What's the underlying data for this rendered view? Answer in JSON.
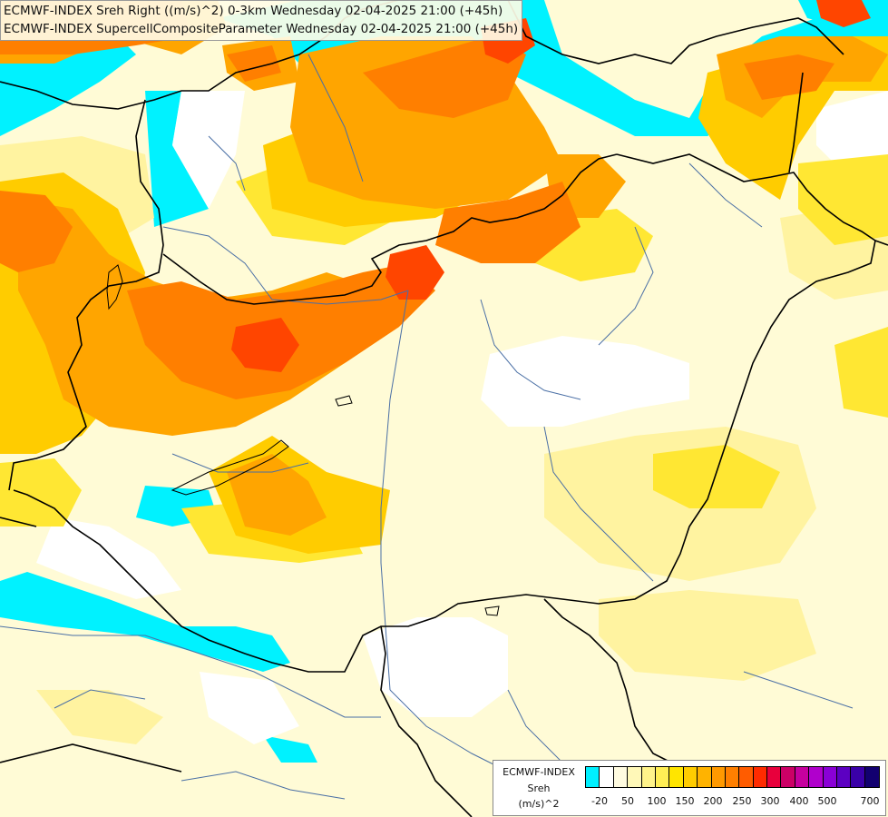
{
  "title": {
    "line1": "ECMWF-INDEX Sreh Right ((m/s)^2) 0-3km Wednesday 02-04-2025 21:00 (+45h)",
    "line2": "ECMWF-INDEX SupercellCompositeParameter Wednesday 02-04-2025 21:00 (+45h)"
  },
  "legend": {
    "model": "ECMWF-INDEX",
    "param": "Sreh",
    "unit": "(m/s)^2",
    "colors": [
      "#00f0ff",
      "#ffffff",
      "#fffbe0",
      "#fff8b8",
      "#fff38a",
      "#ffee55",
      "#ffe500",
      "#ffcc00",
      "#ffb300",
      "#ff9900",
      "#ff7f00",
      "#ff5c00",
      "#ff2b00",
      "#e8003c",
      "#cc0066",
      "#c6009e",
      "#b000cc",
      "#8a00d6",
      "#5c00c2",
      "#3a00a8",
      "#120070"
    ],
    "ticks": [
      "-20",
      "50",
      "100",
      "150",
      "200",
      "250",
      "300",
      "400",
      "500",
      "700"
    ]
  },
  "map_colors": {
    "base_yellow": "#fffbd6",
    "cyan": "#00f2ff",
    "white": "#ffffff",
    "light_yellow": "#fff3a0",
    "yellow": "#ffe733",
    "gold": "#ffcc00",
    "orange": "#ffa500",
    "dark_orange": "#ff7f00",
    "red_orange": "#ff4500",
    "border": "#000000",
    "river": "#4a6fa5"
  }
}
